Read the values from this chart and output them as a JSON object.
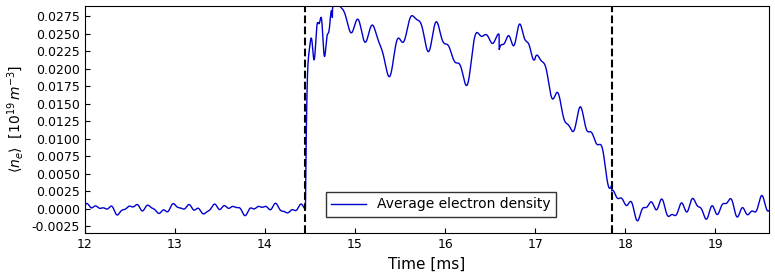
{
  "title": "",
  "xlabel": "Time [ms]",
  "ylabel": "$\\langle n_e \\rangle$  $[10^{19}\\,m^{-3}]$",
  "xlim": [
    12,
    19.6
  ],
  "ylim": [
    -0.0035,
    0.029
  ],
  "xticks": [
    12,
    13,
    14,
    15,
    16,
    17,
    18,
    19
  ],
  "yticks": [
    -0.0025,
    0.0,
    0.0025,
    0.005,
    0.0075,
    0.01,
    0.0125,
    0.015,
    0.0175,
    0.02,
    0.0225,
    0.025,
    0.0275
  ],
  "vline1": 14.45,
  "vline2": 17.85,
  "line_color": "#0000cc",
  "legend_label": "Average electron density",
  "figsize": [
    7.75,
    2.77
  ],
  "dpi": 100
}
